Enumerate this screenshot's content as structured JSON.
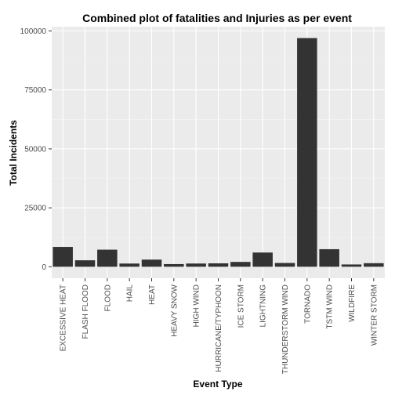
{
  "chart_data": {
    "type": "bar",
    "title": "Combined plot of fatalities and Injuries as per event",
    "xlabel": "Event Type",
    "ylabel": "Total Incidents",
    "categories": [
      "EXCESSIVE HEAT",
      "FLASH FLOOD",
      "FLOOD",
      "HAIL",
      "HEAT",
      "HEAVY SNOW",
      "HIGH WIND",
      "HURRICANE/TYPHOON",
      "ICE STORM",
      "LIGHTNING",
      "THUNDERSTORM WIND",
      "TORNADO",
      "TSTM WIND",
      "WILDFIRE",
      "WINTER STORM"
    ],
    "values": [
      8428,
      2755,
      7259,
      1376,
      3037,
      1148,
      1385,
      1461,
      2064,
      6046,
      1621,
      96979,
      7461,
      986,
      1527
    ],
    "ylim": [
      -4849,
      101828
    ],
    "yticks": [
      0,
      25000,
      50000,
      75000,
      100000
    ],
    "ytick_labels": [
      "0",
      "25000",
      "50000",
      "75000",
      "100000"
    ],
    "grid": true,
    "legend": "none",
    "colors": {
      "panel": "#ebebeb",
      "grid_major": "#ffffff",
      "grid_minor": "#f5f5f5",
      "bar": "#333333",
      "tick_mark": "#333333"
    }
  }
}
